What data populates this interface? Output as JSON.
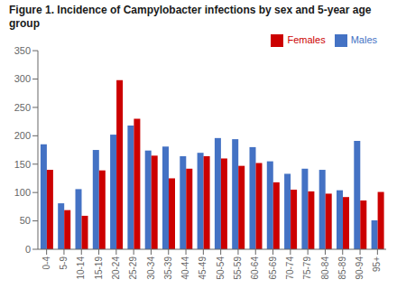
{
  "chart_data": {
    "type": "bar",
    "title": "Figure 1. Incidence of Campylobacter infections by sex and 5-year age group",
    "categories": [
      "0-4",
      "5-9",
      "10-14",
      "15-19",
      "20-24",
      "25-29",
      "30-34",
      "35-39",
      "40-44",
      "45-49",
      "50-54",
      "55-59",
      "60-64",
      "65-69",
      "70-74",
      "75-79",
      "80-84",
      "85-89",
      "90-94",
      "95+"
    ],
    "series": [
      {
        "name": "Males",
        "color": "#4472C4",
        "values": [
          185,
          81,
          106,
          175,
          202,
          218,
          174,
          181,
          164,
          170,
          196,
          194,
          180,
          155,
          133,
          142,
          140,
          104,
          191,
          51
        ]
      },
      {
        "name": "Females",
        "color": "#CC0000",
        "values": [
          140,
          69,
          59,
          139,
          298,
          230,
          165,
          125,
          142,
          164,
          160,
          147,
          152,
          118,
          105,
          102,
          98,
          92,
          86,
          101
        ]
      }
    ],
    "ylim": [
      0,
      350
    ],
    "yticks": [
      0,
      50,
      100,
      150,
      200,
      250,
      300,
      350
    ],
    "grid": false,
    "legend": "upper right"
  }
}
